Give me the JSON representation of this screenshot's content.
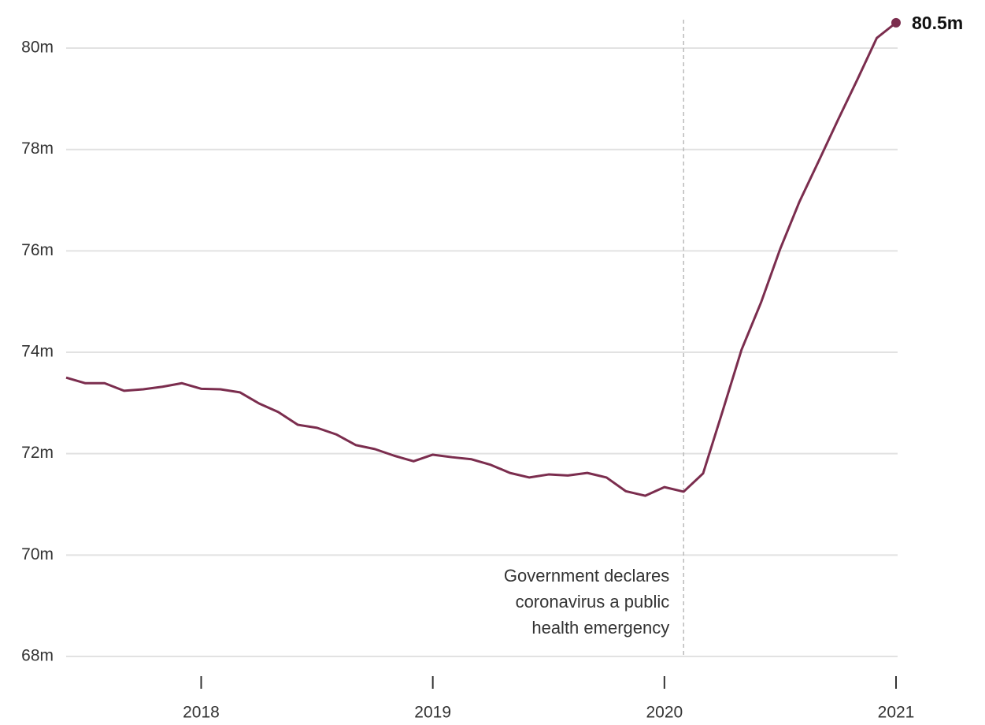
{
  "chart_data": {
    "type": "line",
    "x": [
      2017.417,
      2017.5,
      2017.583,
      2017.667,
      2017.75,
      2017.833,
      2017.917,
      2018.0,
      2018.083,
      2018.167,
      2018.25,
      2018.333,
      2018.417,
      2018.5,
      2018.583,
      2018.667,
      2018.75,
      2018.833,
      2018.917,
      2019.0,
      2019.083,
      2019.167,
      2019.25,
      2019.333,
      2019.417,
      2019.5,
      2019.583,
      2019.667,
      2019.75,
      2019.833,
      2019.917,
      2020.0,
      2020.083,
      2020.167,
      2020.25,
      2020.333,
      2020.417,
      2020.5,
      2020.583,
      2020.667,
      2020.75,
      2020.833,
      2020.917,
      2021.0
    ],
    "values": [
      73.5,
      73.39,
      73.39,
      73.24,
      73.27,
      73.32,
      73.39,
      73.28,
      73.27,
      73.21,
      72.99,
      72.82,
      72.57,
      72.51,
      72.38,
      72.17,
      72.09,
      71.96,
      71.85,
      71.98,
      71.93,
      71.89,
      71.78,
      71.62,
      71.53,
      71.59,
      71.57,
      71.62,
      71.53,
      71.26,
      71.17,
      71.34,
      71.25,
      71.61,
      72.82,
      74.05,
      74.98,
      76.04,
      76.97,
      77.78,
      78.59,
      79.38,
      80.2,
      80.5
    ],
    "value_labels": [
      null,
      null,
      null,
      null,
      null,
      null,
      null,
      null,
      null,
      null,
      null,
      null,
      null,
      null,
      null,
      null,
      null,
      null,
      null,
      null,
      null,
      null,
      null,
      null,
      null,
      null,
      null,
      null,
      null,
      null,
      null,
      null,
      null,
      null,
      null,
      null,
      null,
      null,
      null,
      null,
      null,
      null,
      null,
      "80.5m"
    ],
    "color": "#7b2d4e",
    "xlim": [
      2017.417,
      2021.0
    ],
    "xticks": [
      2018,
      2019,
      2020,
      2021
    ],
    "ylim": [
      68,
      80.6
    ],
    "yticks": [
      {
        "value": 68,
        "label": "68m"
      },
      {
        "value": 70,
        "label": "70m"
      },
      {
        "value": 72,
        "label": "72m"
      },
      {
        "value": 74,
        "label": "74m"
      },
      {
        "value": 76,
        "label": "76m"
      },
      {
        "value": 78,
        "label": "78m"
      },
      {
        "value": 80,
        "label": "80m"
      }
    ],
    "grid": true,
    "annotation": {
      "x": 2020.083,
      "lines": [
        "Government declares",
        "coronavirus a public",
        "health emergency"
      ]
    }
  }
}
